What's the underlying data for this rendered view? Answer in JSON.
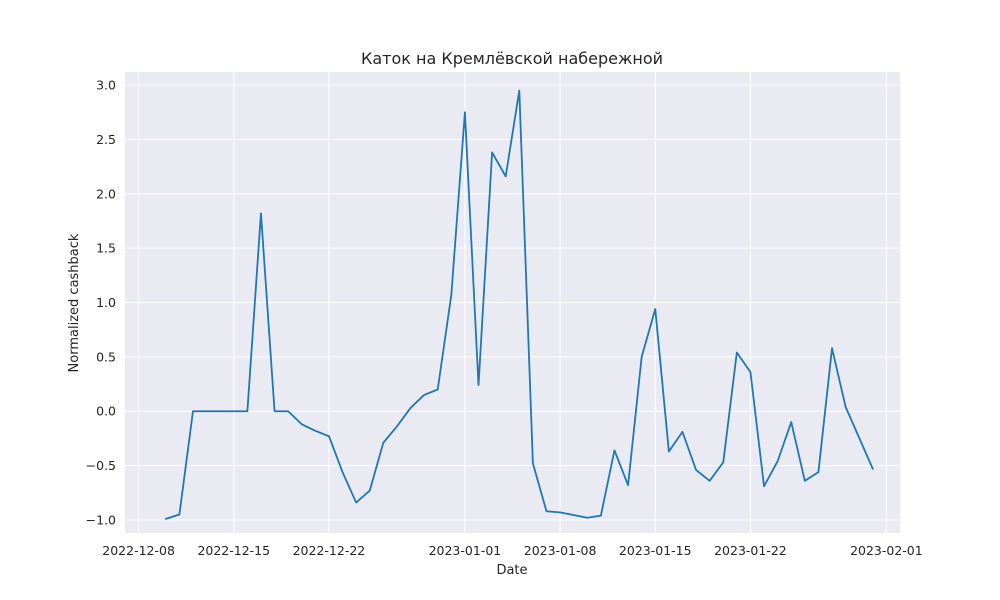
{
  "chart_data": {
    "type": "line",
    "title": "Каток на Кремлёвской набережной",
    "xlabel": "Date",
    "ylabel": "Normalized cashback",
    "xlim": [
      "2022-12-07",
      "2023-02-02"
    ],
    "ylim": [
      -1.12,
      3.12
    ],
    "x_ticks": [
      "2022-12-08",
      "2022-12-15",
      "2022-12-22",
      "2023-01-01",
      "2023-01-08",
      "2023-01-15",
      "2023-01-22",
      "2023-02-01"
    ],
    "y_ticks": [
      -1.0,
      -0.5,
      0.0,
      0.5,
      1.0,
      1.5,
      2.0,
      2.5,
      3.0
    ],
    "y_tick_labels": [
      "−1.0",
      "−0.5",
      "0.0",
      "0.5",
      "1.0",
      "1.5",
      "2.0",
      "2.5",
      "3.0"
    ],
    "grid": true,
    "background": "#eaeaf2",
    "series": [
      {
        "color": "#1f77b4",
        "points": [
          [
            "2022-12-10",
            -0.99
          ],
          [
            "2022-12-11",
            -0.95
          ],
          [
            "2022-12-12",
            0.0
          ],
          [
            "2022-12-13",
            0.0
          ],
          [
            "2022-12-14",
            0.0
          ],
          [
            "2022-12-15",
            0.0
          ],
          [
            "2022-12-16",
            0.0
          ],
          [
            "2022-12-17",
            1.82
          ],
          [
            "2022-12-18",
            0.0
          ],
          [
            "2022-12-19",
            0.0
          ],
          [
            "2022-12-20",
            -0.12
          ],
          [
            "2022-12-21",
            -0.18
          ],
          [
            "2022-12-22",
            -0.23
          ],
          [
            "2022-12-23",
            -0.56
          ],
          [
            "2022-12-24",
            -0.84
          ],
          [
            "2022-12-25",
            -0.73
          ],
          [
            "2022-12-26",
            -0.29
          ],
          [
            "2022-12-27",
            -0.14
          ],
          [
            "2022-12-28",
            0.03
          ],
          [
            "2022-12-29",
            0.15
          ],
          [
            "2022-12-30",
            0.2
          ],
          [
            "2022-12-31",
            1.07
          ],
          [
            "2023-01-01",
            2.75
          ],
          [
            "2023-01-02",
            0.24
          ],
          [
            "2023-01-03",
            2.38
          ],
          [
            "2023-01-04",
            2.16
          ],
          [
            "2023-01-05",
            2.95
          ],
          [
            "2023-01-06",
            -0.48
          ],
          [
            "2023-01-07",
            -0.92
          ],
          [
            "2023-01-08",
            -0.93
          ],
          [
            "2023-01-10",
            -0.98
          ],
          [
            "2023-01-11",
            -0.96
          ],
          [
            "2023-01-12",
            -0.36
          ],
          [
            "2023-01-13",
            -0.68
          ],
          [
            "2023-01-14",
            0.5
          ],
          [
            "2023-01-15",
            0.94
          ],
          [
            "2023-01-16",
            -0.37
          ],
          [
            "2023-01-17",
            -0.19
          ],
          [
            "2023-01-18",
            -0.54
          ],
          [
            "2023-01-19",
            -0.64
          ],
          [
            "2023-01-20",
            -0.47
          ],
          [
            "2023-01-21",
            0.54
          ],
          [
            "2023-01-22",
            0.36
          ],
          [
            "2023-01-23",
            -0.69
          ],
          [
            "2023-01-24",
            -0.46
          ],
          [
            "2023-01-25",
            -0.1
          ],
          [
            "2023-01-26",
            -0.64
          ],
          [
            "2023-01-27",
            -0.56
          ],
          [
            "2023-01-28",
            0.58
          ],
          [
            "2023-01-29",
            0.04
          ],
          [
            "2023-01-31",
            -0.53
          ]
        ]
      }
    ]
  }
}
